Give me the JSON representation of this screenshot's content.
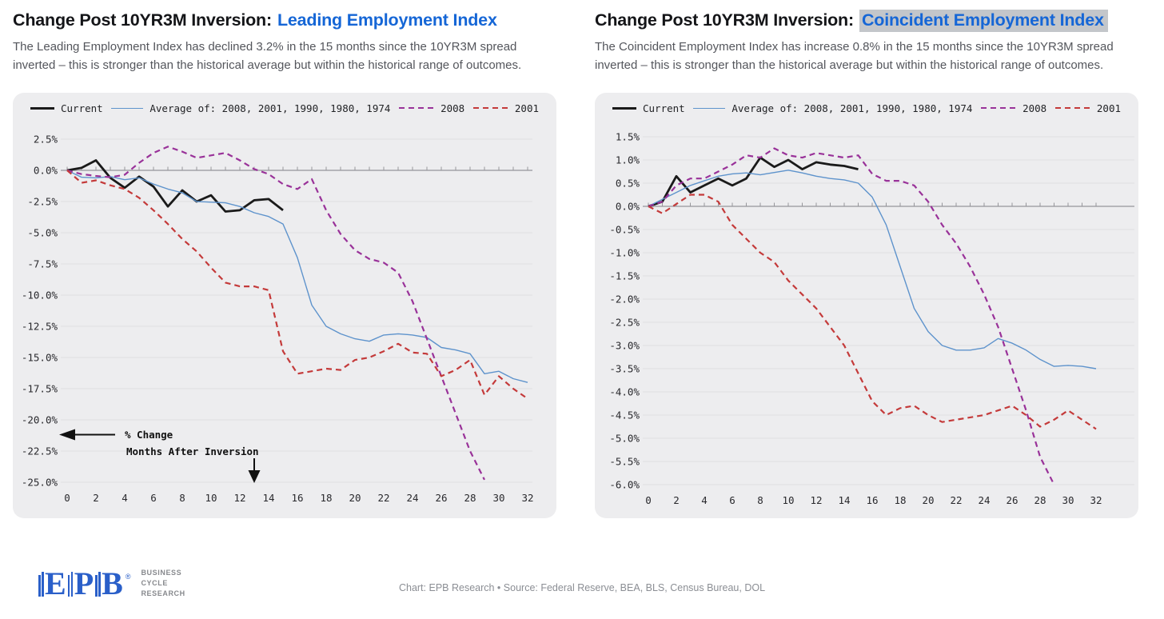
{
  "colors": {
    "title_accent": "#1566d6",
    "highlight_bg": "#c3c6ca",
    "logo_blue": "#2a5fc9",
    "current": "#1a1a1a",
    "average": "#5e93cc",
    "y2008": "#993299",
    "y2001": "#c43a3a"
  },
  "panels": [
    {
      "title_prefix": "Change Post 10YR3M Inversion:",
      "title_emphasis": "Leading Employment Index",
      "emphasis_highlighted": false,
      "subtitle": "The Leading Employment Index has declined 3.2% in the 15 months since the 10YR3M spread inverted – this is stronger than the historical average but within the historical range of outcomes."
    },
    {
      "title_prefix": "Change Post 10YR3M Inversion:",
      "title_emphasis": "Coincident Employment Index",
      "emphasis_highlighted": true,
      "subtitle": "The Coincident Employment Index has increase 0.8% in the 15 months since the 10YR3M spread inverted – this is stronger than the historical average but within the historical range of outcomes."
    }
  ],
  "chart_data": [
    {
      "type": "line",
      "title": "Change Post 10YR3M Inversion: Leading Employment Index",
      "xlabel": "Months After Inversion",
      "ylabel": "% Change",
      "xlim": [
        0,
        32
      ],
      "ylim": [
        -25,
        2.5
      ],
      "grid": true,
      "legend_position": "top",
      "x_tick_step": 2,
      "x_tick_labels": [
        "0",
        "2",
        "4",
        "6",
        "8",
        "10",
        "12",
        "14",
        "16",
        "18",
        "20",
        "22",
        "24",
        "26",
        "28",
        "30",
        "32"
      ],
      "y_ticks": [
        2.5,
        0,
        -2.5,
        -5,
        -7.5,
        -10,
        -12.5,
        -15,
        -17.5,
        -20,
        -22.5,
        -25
      ],
      "y_tick_labels": [
        "2.5%",
        "0.0%",
        "-2.5%",
        "-5.0%",
        "-7.5%",
        "-10.0%",
        "-12.5%",
        "-15.0%",
        "-17.5%",
        "-20.0%",
        "-22.5%",
        "-25.0%"
      ],
      "annotations": {
        "ylabel": "% Change",
        "xlabel": "Months After Inversion"
      },
      "series": [
        {
          "name": "Current",
          "color": "#1a1a1a",
          "style": "solid",
          "width": 2.8,
          "values": [
            0.0,
            0.2,
            0.8,
            -0.6,
            -1.4,
            -0.5,
            -1.3,
            -2.9,
            -1.6,
            -2.5,
            -2.0,
            -3.3,
            -3.2,
            -2.4,
            -2.3,
            -3.2
          ]
        },
        {
          "name": "Average of: 2008, 2001, 1990, 1980, 1974",
          "color": "#5e93cc",
          "style": "solid",
          "width": 1.4,
          "values": [
            0.0,
            -0.55,
            -0.6,
            -0.5,
            -0.75,
            -0.6,
            -1.1,
            -1.5,
            -1.8,
            -2.5,
            -2.55,
            -2.6,
            -2.9,
            -3.4,
            -3.7,
            -4.3,
            -7.0,
            -10.8,
            -12.5,
            -13.1,
            -13.5,
            -13.7,
            -13.2,
            -13.1,
            -13.2,
            -13.4,
            -14.2,
            -14.4,
            -14.7,
            -16.3,
            -16.1,
            -16.7,
            -17.0
          ]
        },
        {
          "name": "2008",
          "color": "#993299",
          "style": "dashed",
          "width": 2.2,
          "values": [
            0.0,
            -0.3,
            -0.45,
            -0.55,
            -0.35,
            0.6,
            1.4,
            1.9,
            1.5,
            1.0,
            1.2,
            1.4,
            0.8,
            0.1,
            -0.3,
            -1.1,
            -1.5,
            -0.7,
            -3.2,
            -5.1,
            -6.4,
            -7.1,
            -7.4,
            -8.2,
            -10.5,
            -13.5,
            -16.5,
            -19.5,
            -22.5,
            -24.8
          ]
        },
        {
          "name": "2001",
          "color": "#c43a3a",
          "style": "dashed",
          "width": 2.2,
          "values": [
            0.0,
            -1.0,
            -0.8,
            -1.2,
            -1.5,
            -2.2,
            -3.2,
            -4.3,
            -5.5,
            -6.5,
            -7.8,
            -9.0,
            -9.3,
            -9.3,
            -9.6,
            -14.5,
            -16.3,
            -16.1,
            -15.9,
            -16.0,
            -15.2,
            -15.0,
            -14.5,
            -13.9,
            -14.6,
            -14.7,
            -16.5,
            -16.0,
            -15.2,
            -18.0,
            -16.5,
            -17.5,
            -18.3
          ]
        }
      ]
    },
    {
      "type": "line",
      "title": "Change Post 10YR3M Inversion: Coincident Employment Index",
      "xlabel": "Months After Inversion",
      "ylabel": "% Change",
      "xlim": [
        0,
        32
      ],
      "ylim": [
        -6,
        1.5
      ],
      "grid": true,
      "legend_position": "top",
      "x_tick_step": 2,
      "x_tick_labels": [
        "0",
        "2",
        "4",
        "6",
        "8",
        "10",
        "12",
        "14",
        "16",
        "18",
        "20",
        "22",
        "24",
        "26",
        "28",
        "30",
        "32"
      ],
      "y_ticks": [
        1.5,
        1.0,
        0.5,
        0.0,
        -0.5,
        -1.0,
        -1.5,
        -2.0,
        -2.5,
        -3.0,
        -3.5,
        -4.0,
        -4.5,
        -5.0,
        -5.5,
        -6.0
      ],
      "y_tick_labels": [
        "1.5%",
        "1.0%",
        "0.5%",
        "0.0%",
        "-0.5%",
        "-1.0%",
        "-1.5%",
        "-2.0%",
        "-2.5%",
        "-3.0%",
        "-3.5%",
        "-4.0%",
        "-4.5%",
        "-5.0%",
        "-5.5%",
        "-6.0%"
      ],
      "series": [
        {
          "name": "Current",
          "color": "#1a1a1a",
          "style": "solid",
          "width": 2.8,
          "values": [
            0.0,
            0.1,
            0.65,
            0.3,
            0.45,
            0.6,
            0.45,
            0.6,
            1.05,
            0.85,
            1.0,
            0.8,
            0.95,
            0.9,
            0.87,
            0.8
          ]
        },
        {
          "name": "Average of: 2008, 2001, 1990, 1980, 1974",
          "color": "#5e93cc",
          "style": "solid",
          "width": 1.4,
          "values": [
            0.0,
            0.15,
            0.3,
            0.45,
            0.55,
            0.65,
            0.7,
            0.72,
            0.68,
            0.73,
            0.78,
            0.72,
            0.65,
            0.6,
            0.57,
            0.5,
            0.2,
            -0.4,
            -1.3,
            -2.2,
            -2.7,
            -3.0,
            -3.1,
            -3.1,
            -3.05,
            -2.85,
            -2.95,
            -3.1,
            -3.3,
            -3.45,
            -3.43,
            -3.45,
            -3.5
          ]
        },
        {
          "name": "2008",
          "color": "#993299",
          "style": "dashed",
          "width": 2.2,
          "values": [
            0.0,
            0.1,
            0.45,
            0.6,
            0.6,
            0.75,
            0.9,
            1.1,
            1.05,
            1.25,
            1.1,
            1.05,
            1.15,
            1.1,
            1.05,
            1.1,
            0.7,
            0.55,
            0.55,
            0.45,
            0.1,
            -0.4,
            -0.8,
            -1.3,
            -1.9,
            -2.6,
            -3.5,
            -4.4,
            -5.4,
            -6.0
          ]
        },
        {
          "name": "2001",
          "color": "#c43a3a",
          "style": "dashed",
          "width": 2.2,
          "values": [
            0.0,
            -0.15,
            0.05,
            0.25,
            0.25,
            0.1,
            -0.4,
            -0.7,
            -1.0,
            -1.2,
            -1.6,
            -1.9,
            -2.2,
            -2.6,
            -3.0,
            -3.6,
            -4.2,
            -4.5,
            -4.35,
            -4.3,
            -4.5,
            -4.65,
            -4.6,
            -4.55,
            -4.5,
            -4.4,
            -4.3,
            -4.5,
            -4.75,
            -4.6,
            -4.4,
            -4.6,
            -4.8
          ]
        }
      ]
    }
  ],
  "footer": {
    "logo_letters": [
      "E",
      "P",
      "B"
    ],
    "logo_registered": "®",
    "logo_tagline_lines": [
      "BUSINESS",
      "CYCLE",
      "RESEARCH"
    ],
    "credit": "Chart: EPB Research  •  Source: Federal Reserve, BEA, BLS, Census Bureau, DOL"
  }
}
